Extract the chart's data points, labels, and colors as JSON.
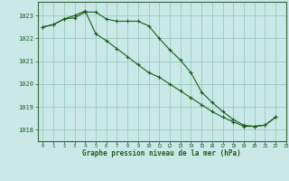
{
  "title": "Graphe pression niveau de la mer (hPa)",
  "background_color": "#cbe8e8",
  "plot_bg_color": "#cbe8e8",
  "grid_color": "#99ccbb",
  "line_color": "#1a5e1a",
  "xlim": [
    -0.5,
    23
  ],
  "ylim": [
    1017.5,
    1023.6
  ],
  "yticks": [
    1018,
    1019,
    1020,
    1021,
    1022,
    1023
  ],
  "xticks": [
    0,
    1,
    2,
    3,
    4,
    5,
    6,
    7,
    8,
    9,
    10,
    11,
    12,
    13,
    14,
    15,
    16,
    17,
    18,
    19,
    20,
    21,
    22,
    23
  ],
  "series1": [
    [
      0,
      1022.5
    ],
    [
      1,
      1022.6
    ],
    [
      2,
      1022.85
    ],
    [
      3,
      1022.9
    ],
    [
      4,
      1023.15
    ],
    [
      5,
      1023.15
    ],
    [
      6,
      1022.85
    ],
    [
      7,
      1022.75
    ],
    [
      8,
      1022.75
    ],
    [
      9,
      1022.75
    ],
    [
      10,
      1022.55
    ],
    [
      11,
      1022.0
    ],
    [
      12,
      1021.5
    ],
    [
      13,
      1021.05
    ],
    [
      14,
      1020.5
    ],
    [
      15,
      1019.65
    ],
    [
      16,
      1019.2
    ],
    [
      17,
      1018.8
    ],
    [
      18,
      1018.45
    ],
    [
      19,
      1018.2
    ],
    [
      20,
      1018.15
    ],
    [
      21,
      1018.2
    ],
    [
      22,
      1018.55
    ]
  ],
  "series2": [
    [
      0,
      1022.5
    ],
    [
      1,
      1022.6
    ],
    [
      2,
      1022.85
    ],
    [
      3,
      1023.0
    ],
    [
      4,
      1023.2
    ],
    [
      5,
      1022.2
    ],
    [
      6,
      1021.9
    ],
    [
      7,
      1021.55
    ],
    [
      8,
      1021.2
    ],
    [
      9,
      1020.85
    ],
    [
      10,
      1020.5
    ],
    [
      11,
      1020.3
    ],
    [
      12,
      1020.0
    ],
    [
      13,
      1019.7
    ],
    [
      14,
      1019.4
    ],
    [
      15,
      1019.1
    ],
    [
      16,
      1018.8
    ],
    [
      17,
      1018.55
    ],
    [
      18,
      1018.35
    ],
    [
      19,
      1018.15
    ],
    [
      20,
      1018.15
    ],
    [
      21,
      1018.2
    ],
    [
      22,
      1018.55
    ]
  ]
}
